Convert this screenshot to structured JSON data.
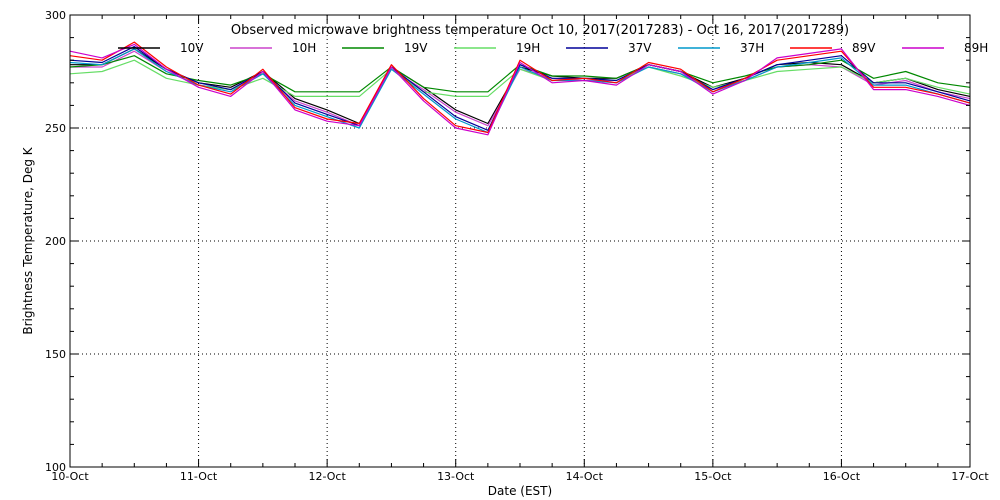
{
  "chart_data": {
    "type": "line",
    "title": "Observed microwave brightness temperature Oct 10, 2017(2017283) - Oct 16, 2017(2017289)",
    "xlabel": "Date (EST)",
    "ylabel": "Brightness Temperature, Deg K",
    "xlim": [
      "10-Oct",
      "17-Oct"
    ],
    "ylim": [
      100,
      300
    ],
    "x_ticks": [
      "10-Oct",
      "11-Oct",
      "12-Oct",
      "13-Oct",
      "14-Oct",
      "15-Oct",
      "16-Oct",
      "17-Oct"
    ],
    "y_ticks": [
      100,
      150,
      200,
      250,
      300
    ],
    "grid": true,
    "legend_position": "top",
    "x": [
      "10-Oct",
      "10-Oct 6h",
      "10-Oct 12h",
      "10-Oct 18h",
      "11-Oct",
      "11-Oct 6h",
      "11-Oct 12h",
      "11-Oct 18h",
      "12-Oct",
      "12-Oct 6h",
      "12-Oct 12h",
      "12-Oct 18h",
      "13-Oct",
      "13-Oct 6h",
      "13-Oct 12h",
      "13-Oct 18h",
      "14-Oct",
      "14-Oct 6h",
      "14-Oct 12h",
      "14-Oct 18h",
      "15-Oct",
      "15-Oct 6h",
      "15-Oct 12h",
      "15-Oct 18h",
      "16-Oct",
      "16-Oct 6h",
      "16-Oct 12h",
      "16-Oct 18h",
      "17-Oct"
    ],
    "series": [
      {
        "name": "10V",
        "color": "#000000",
        "values": [
          278,
          278,
          285,
          276,
          270,
          268,
          275,
          263,
          258,
          252,
          277,
          268,
          258,
          252,
          277,
          273,
          272,
          272,
          278,
          275,
          268,
          272,
          278,
          279,
          278,
          270,
          272,
          267,
          264
        ]
      },
      {
        "name": "10H",
        "color": "#cc44cc",
        "values": [
          277,
          277,
          284,
          275,
          269,
          267,
          274,
          262,
          257,
          251,
          276,
          267,
          257,
          251,
          276,
          272,
          271,
          271,
          277,
          274,
          267,
          271,
          277,
          278,
          277,
          269,
          271,
          266,
          263
        ]
      },
      {
        "name": "19V",
        "color": "#008800",
        "values": [
          277,
          278,
          282,
          274,
          271,
          269,
          274,
          266,
          266,
          266,
          277,
          268,
          266,
          266,
          278,
          273,
          273,
          272,
          278,
          275,
          270,
          273,
          277,
          278,
          280,
          272,
          275,
          270,
          268
        ]
      },
      {
        "name": "19H",
        "color": "#66dd66",
        "values": [
          274,
          275,
          280,
          272,
          269,
          267,
          272,
          264,
          264,
          264,
          276,
          266,
          264,
          264,
          276,
          271,
          272,
          271,
          277,
          273,
          268,
          271,
          275,
          276,
          277,
          270,
          272,
          268,
          265
        ]
      },
      {
        "name": "37V",
        "color": "#000099",
        "values": [
          280,
          279,
          286,
          276,
          270,
          267,
          275,
          261,
          256,
          251,
          277,
          266,
          255,
          249,
          278,
          272,
          272,
          271,
          278,
          275,
          267,
          272,
          278,
          280,
          282,
          270,
          270,
          266,
          262
        ]
      },
      {
        "name": "37H",
        "color": "#0099cc",
        "values": [
          279,
          278,
          285,
          275,
          269,
          266,
          274,
          260,
          255,
          250,
          276,
          265,
          254,
          248,
          277,
          271,
          271,
          270,
          277,
          274,
          266,
          271,
          277,
          279,
          281,
          269,
          269,
          265,
          261
        ]
      },
      {
        "name": "89V",
        "color": "#ff0000",
        "values": [
          282,
          280,
          288,
          277,
          269,
          265,
          276,
          259,
          254,
          252,
          278,
          263,
          251,
          248,
          280,
          271,
          272,
          270,
          279,
          276,
          266,
          272,
          280,
          282,
          284,
          268,
          268,
          265,
          261
        ]
      },
      {
        "name": "89H",
        "color": "#cc00cc",
        "values": [
          284,
          281,
          287,
          276,
          268,
          264,
          275,
          258,
          253,
          251,
          277,
          262,
          250,
          247,
          279,
          270,
          271,
          269,
          278,
          275,
          265,
          271,
          281,
          283,
          285,
          267,
          267,
          264,
          260
        ]
      }
    ]
  }
}
